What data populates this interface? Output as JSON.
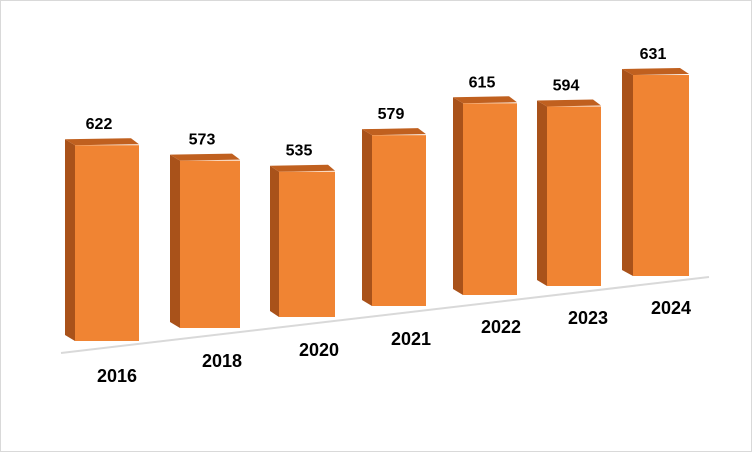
{
  "chart_data": {
    "type": "bar",
    "title": "",
    "xlabel": "",
    "ylabel": "",
    "categories": [
      "2016",
      "2018",
      "2020",
      "2021",
      "2022",
      "2023",
      "2024"
    ],
    "values": [
      622,
      573,
      535,
      579,
      615,
      594,
      631
    ],
    "data_labels": [
      "622",
      "573",
      "535",
      "579",
      "615",
      "594",
      "631"
    ],
    "style": "3d-perspective-columns",
    "grid": false,
    "legend": "none",
    "colors": {
      "bar_front": "#f08433",
      "bar_side": "#a9521a",
      "bar_top": "#c0601f",
      "floor_line": "#d9d9d9"
    }
  }
}
